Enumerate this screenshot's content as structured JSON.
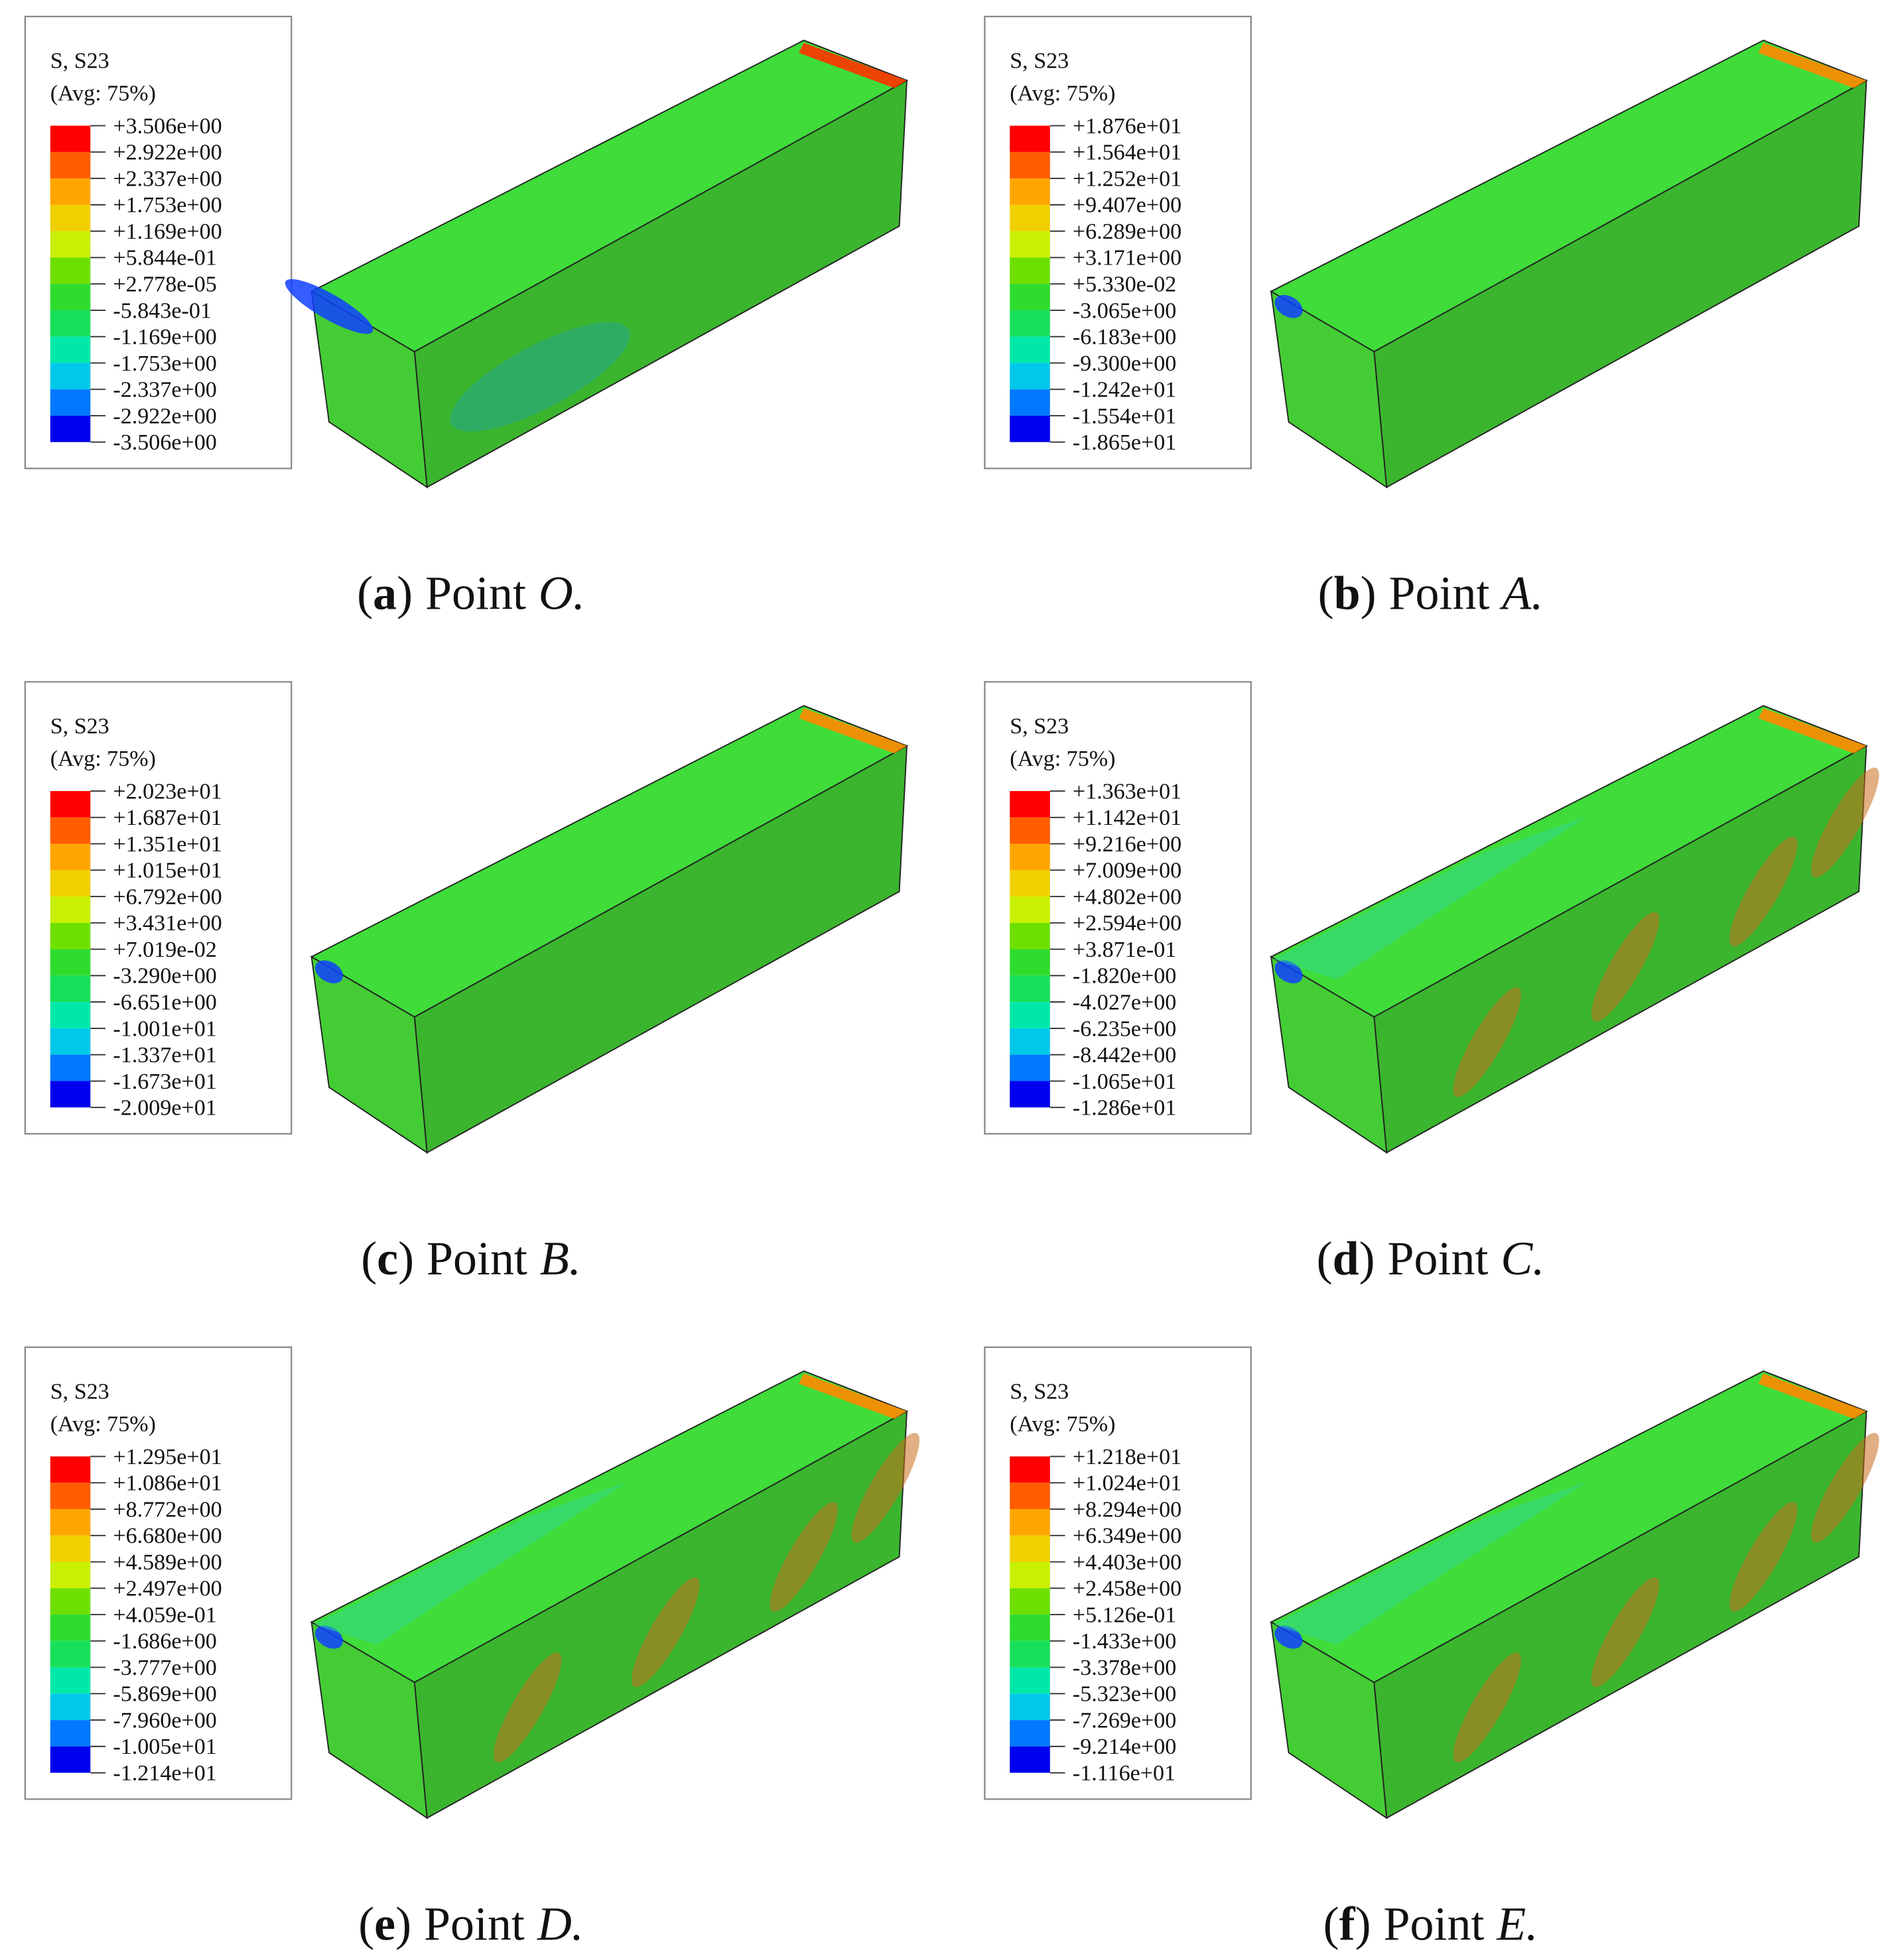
{
  "panels": [
    {
      "legend": {
        "title": "S, S23",
        "subtitle": "(Avg: 75%)",
        "labels": [
          "+3.506e+00",
          "+2.922e+00",
          "+2.337e+00",
          "+1.753e+00",
          "+1.169e+00",
          "+5.844e-01",
          "+2.778e-05",
          "-5.843e-01",
          "-1.169e+00",
          "-1.753e+00",
          "-2.337e+00",
          "-2.922e+00",
          "-3.506e+00"
        ]
      },
      "caption": {
        "open": "(",
        "letter": "a",
        "close": ")",
        "text": "Point",
        "point": "O."
      }
    },
    {
      "legend": {
        "title": "S, S23",
        "subtitle": "(Avg: 75%)",
        "labels": [
          "+1.876e+01",
          "+1.564e+01",
          "+1.252e+01",
          "+9.407e+00",
          "+6.289e+00",
          "+3.171e+00",
          "+5.330e-02",
          "-3.065e+00",
          "-6.183e+00",
          "-9.300e+00",
          "-1.242e+01",
          "-1.554e+01",
          "-1.865e+01"
        ]
      },
      "caption": {
        "open": "(",
        "letter": "b",
        "close": ")",
        "text": "Point",
        "point": "A."
      }
    },
    {
      "legend": {
        "title": "S, S23",
        "subtitle": "(Avg: 75%)",
        "labels": [
          "+2.023e+01",
          "+1.687e+01",
          "+1.351e+01",
          "+1.015e+01",
          "+6.792e+00",
          "+3.431e+00",
          "+7.019e-02",
          "-3.290e+00",
          "-6.651e+00",
          "-1.001e+01",
          "-1.337e+01",
          "-1.673e+01",
          "-2.009e+01"
        ]
      },
      "caption": {
        "open": "(",
        "letter": "c",
        "close": ")",
        "text": "Point",
        "point": "B."
      }
    },
    {
      "legend": {
        "title": "S, S23",
        "subtitle": "(Avg: 75%)",
        "labels": [
          "+1.363e+01",
          "+1.142e+01",
          "+9.216e+00",
          "+7.009e+00",
          "+4.802e+00",
          "+2.594e+00",
          "+3.871e-01",
          "-1.820e+00",
          "-4.027e+00",
          "-6.235e+00",
          "-8.442e+00",
          "-1.065e+01",
          "-1.286e+01"
        ]
      },
      "caption": {
        "open": "(",
        "letter": "d",
        "close": ")",
        "text": "Point",
        "point": "C."
      }
    },
    {
      "legend": {
        "title": "S, S23",
        "subtitle": "(Avg: 75%)",
        "labels": [
          "+1.295e+01",
          "+1.086e+01",
          "+8.772e+00",
          "+6.680e+00",
          "+4.589e+00",
          "+2.497e+00",
          "+4.059e-01",
          "-1.686e+00",
          "-3.777e+00",
          "-5.869e+00",
          "-7.960e+00",
          "-1.005e+01",
          "-1.214e+01"
        ]
      },
      "caption": {
        "open": "(",
        "letter": "e",
        "close": ")",
        "text": "Point",
        "point": "D."
      }
    },
    {
      "legend": {
        "title": "S, S23",
        "subtitle": "(Avg: 75%)",
        "labels": [
          "+1.218e+01",
          "+1.024e+01",
          "+8.294e+00",
          "+6.349e+00",
          "+4.403e+00",
          "+2.458e+00",
          "+5.126e-01",
          "-1.433e+00",
          "-3.378e+00",
          "-5.323e+00",
          "-7.269e+00",
          "-9.214e+00",
          "-1.116e+01"
        ]
      },
      "caption": {
        "open": "(",
        "letter": "f",
        "close": ")",
        "text": "Point",
        "point": "E."
      }
    }
  ]
}
